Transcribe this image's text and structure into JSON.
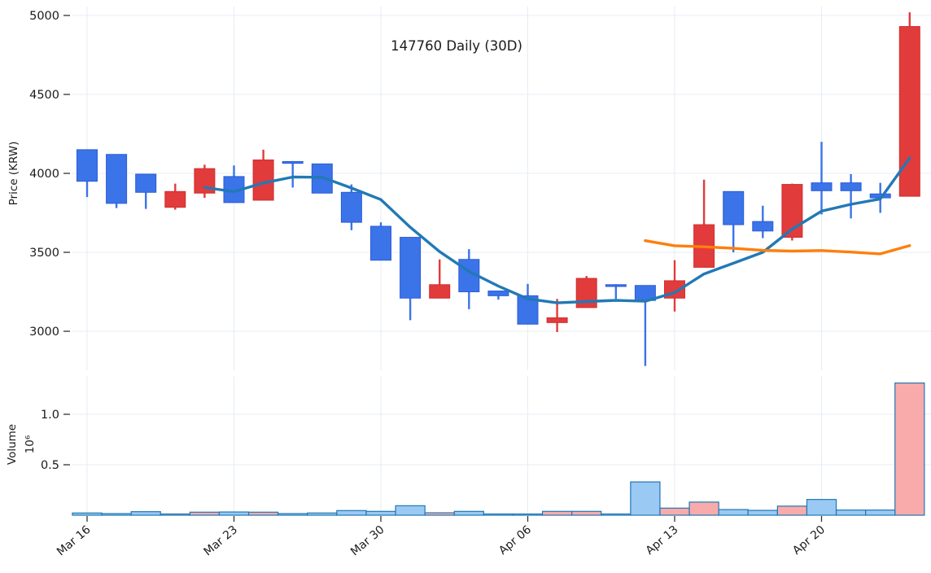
{
  "chart": {
    "title": "147760 Daily (30D)",
    "price_axis_label": "Price (KRW)",
    "volume_axis_label": "Volume",
    "volume_axis_scale_label": "10⁶"
  },
  "chart_data": {
    "type": "candlestick",
    "title": "147760 Daily (30D)",
    "ylabel_price": "Price (KRW)",
    "ylabel_volume": "Volume",
    "volume_unit_exponent": "10⁶",
    "grid": true,
    "price_axis": {
      "ticks": [
        5000,
        4500,
        4000,
        3500,
        3000
      ],
      "tick_labels": [
        "5000",
        "4500",
        "4000",
        "3500",
        "3000"
      ],
      "ylim_ticks": [
        3000,
        5000
      ]
    },
    "volume_axis": {
      "ticks": [
        1000000,
        500000
      ],
      "tick_labels": [
        "1.0",
        "0.5"
      ]
    },
    "x_axis": {
      "tick_labels": [
        "Mar 16",
        "Mar 23",
        "Mar 30",
        "Apr 06",
        "Apr 13",
        "Apr 20"
      ],
      "tick_indices": [
        0,
        5,
        10,
        15,
        20,
        25
      ],
      "label_rotation_deg": -40
    },
    "candles": [
      {
        "date": "Mar 16",
        "open": 4150,
        "high": 4150,
        "low": 3850,
        "close": 3950,
        "volume": 22000
      },
      {
        "date": "Mar 17",
        "open": 4120,
        "high": 4120,
        "low": 3780,
        "close": 3810,
        "volume": 16000
      },
      {
        "date": "Mar 18",
        "open": 3995,
        "high": 3995,
        "low": 3775,
        "close": 3880,
        "volume": 35000
      },
      {
        "date": "Mar 19",
        "open": 3785,
        "high": 3935,
        "low": 3770,
        "close": 3885,
        "volume": 8000
      },
      {
        "date": "Mar 20",
        "open": 3875,
        "high": 4055,
        "low": 3845,
        "close": 4030,
        "volume": 30000
      },
      {
        "date": "Mar 23",
        "open": 3980,
        "high": 4050,
        "low": 3815,
        "close": 3815,
        "volume": 32000
      },
      {
        "date": "Mar 24",
        "open": 3830,
        "high": 4150,
        "low": 3830,
        "close": 4085,
        "volume": 30000
      },
      {
        "date": "Mar 25",
        "open": 4075,
        "high": 4078,
        "low": 3910,
        "close": 4070,
        "volume": 16000
      },
      {
        "date": "Mar 26",
        "open": 4060,
        "high": 4060,
        "low": 3875,
        "close": 3875,
        "volume": 22000
      },
      {
        "date": "Mar 27",
        "open": 3880,
        "high": 3930,
        "low": 3640,
        "close": 3690,
        "volume": 46000
      },
      {
        "date": "Mar 30",
        "open": 3665,
        "high": 3690,
        "low": 3450,
        "close": 3450,
        "volume": 38000
      },
      {
        "date": "Mar 31",
        "open": 3595,
        "high": 3595,
        "low": 3070,
        "close": 3210,
        "volume": 94000
      },
      {
        "date": "Apr 01",
        "open": 3210,
        "high": 3455,
        "low": 3210,
        "close": 3295,
        "volume": 24000
      },
      {
        "date": "Apr 02",
        "open": 3455,
        "high": 3520,
        "low": 3140,
        "close": 3250,
        "volume": 38000
      },
      {
        "date": "Apr 03",
        "open": 3255,
        "high": 3255,
        "low": 3200,
        "close": 3225,
        "volume": 11000
      },
      {
        "date": "Apr 06",
        "open": 3225,
        "high": 3300,
        "low": 3045,
        "close": 3045,
        "volume": 8000
      },
      {
        "date": "Apr 07",
        "open": 3055,
        "high": 3205,
        "low": 2995,
        "close": 3085,
        "volume": 38000
      },
      {
        "date": "Apr 08",
        "open": 3150,
        "high": 3350,
        "low": 3150,
        "close": 3335,
        "volume": 38000
      },
      {
        "date": "Apr 09",
        "open": 3295,
        "high": 3298,
        "low": 3205,
        "close": 3290,
        "volume": 10000
      },
      {
        "date": "Apr 10",
        "open": 3290,
        "high": 3290,
        "low": 2780,
        "close": 3195,
        "volume": 330000
      },
      {
        "date": "Apr 13",
        "open": 3210,
        "high": 3450,
        "low": 3125,
        "close": 3320,
        "volume": 70000
      },
      {
        "date": "Apr 14",
        "open": 3405,
        "high": 3960,
        "low": 3405,
        "close": 3675,
        "volume": 130000
      },
      {
        "date": "Apr 15",
        "open": 3885,
        "high": 3885,
        "low": 3500,
        "close": 3675,
        "volume": 56000
      },
      {
        "date": "Apr 16",
        "open": 3695,
        "high": 3795,
        "low": 3590,
        "close": 3635,
        "volume": 48000
      },
      {
        "date": "Apr 17",
        "open": 3595,
        "high": 3935,
        "low": 3575,
        "close": 3930,
        "volume": 90000
      },
      {
        "date": "Apr 20",
        "open": 3940,
        "high": 4200,
        "low": 3740,
        "close": 3890,
        "volume": 156000
      },
      {
        "date": "Apr 21",
        "open": 3940,
        "high": 3995,
        "low": 3715,
        "close": 3890,
        "volume": 51000
      },
      {
        "date": "Apr 22",
        "open": 3870,
        "high": 3940,
        "low": 3750,
        "close": 3845,
        "volume": 51000
      },
      {
        "date": "Apr 23",
        "open": 3855,
        "high": 5020,
        "low": 3855,
        "close": 4930,
        "volume": 1310000
      }
    ],
    "indicators": [
      {
        "name": "MA5",
        "type": "sma_close",
        "period": 5,
        "color": "#2279b5"
      },
      {
        "name": "MA20",
        "type": "sma_close",
        "period": 20,
        "color": "#fd7f0e"
      }
    ],
    "colors": {
      "up_fill": "#e23b3b",
      "up_edge": "#cf2f2f",
      "down_fill": "#3b73e8",
      "down_edge": "#2c5cd8",
      "vol_up_fill": "#f9abab",
      "vol_down_fill": "#9ac9f4",
      "vol_edge": "#1f77b4",
      "grid": "#e7edf5",
      "tick_mark": "#333333",
      "text": "#1b1b1b",
      "background": "#ffffff"
    }
  }
}
